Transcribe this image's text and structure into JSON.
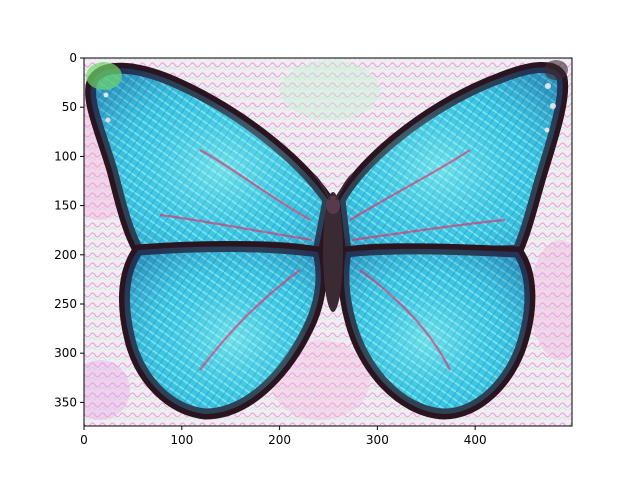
{
  "figure": {
    "background": "#ffffff",
    "axes_color": "#000000"
  },
  "image": {
    "subject": "butterfly",
    "description_colors": {
      "wing_primary": "#3cc8e0",
      "wing_highlight": "#7ef0f2",
      "wing_deep": "#1a6fa8",
      "wing_edge": "#2a1420",
      "vein_accent": "#e0306a",
      "background_light": "#f4eef2",
      "background_pink": "#f2a6dc",
      "background_green": "#c6f0d2"
    }
  },
  "axes": {
    "x_ticks": [
      {
        "value": 0,
        "label": "0"
      },
      {
        "value": 100,
        "label": "100"
      },
      {
        "value": 200,
        "label": "200"
      },
      {
        "value": 300,
        "label": "300"
      },
      {
        "value": 400,
        "label": "400"
      }
    ],
    "y_ticks": [
      {
        "value": 0,
        "label": "0"
      },
      {
        "value": 50,
        "label": "50"
      },
      {
        "value": 100,
        "label": "100"
      },
      {
        "value": 150,
        "label": "150"
      },
      {
        "value": 200,
        "label": "200"
      },
      {
        "value": 250,
        "label": "250"
      },
      {
        "value": 300,
        "label": "300"
      },
      {
        "value": 350,
        "label": "350"
      }
    ],
    "x_range": [
      0,
      499
    ],
    "y_range": [
      0,
      374
    ]
  }
}
